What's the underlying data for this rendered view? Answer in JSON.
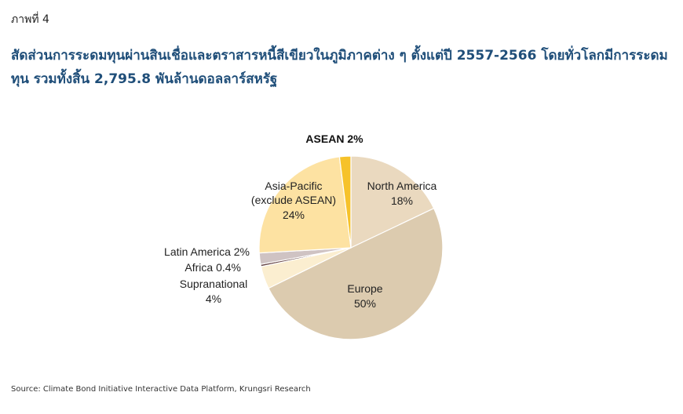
{
  "figure_label": "ภาพที่ 4",
  "title": "สัดส่วนการระดมทุนผ่านสินเชื่อและตราสารหนี้สีเขียวในภูมิภาคต่าง ๆ ตั้งแต่ปี 2557-2566 โดยทั่วโลกมีการระดมทุน รวมทั้งสิ้น 2,795.8 พันล้านดอลลาร์สหรัฐ",
  "source": "Source: Climate Bond Initiative Interactive Data Platform, Krungsri Research",
  "chart_data": {
    "type": "pie",
    "unit": "%",
    "slices": [
      {
        "name": "North America",
        "value": 18,
        "value_label": "18%",
        "color": "#ead9bf"
      },
      {
        "name": "Europe",
        "value": 50,
        "value_label": "50%",
        "color": "#dccbaf"
      },
      {
        "name": "Supranational",
        "value": 4,
        "value_label": "4%",
        "color": "#fbeed0"
      },
      {
        "name": "Africa",
        "value": 0.4,
        "value_label": "0.4%",
        "color": "#6b4a4a"
      },
      {
        "name": "Latin America",
        "value": 2,
        "value_label": "2%",
        "color": "#cfc3c3"
      },
      {
        "name": "Asia-Pacific (exclude ASEAN)",
        "value": 24,
        "value_label": "24%",
        "color": "#fde2a2"
      },
      {
        "name": "ASEAN",
        "value": 2,
        "value_label": "2%",
        "color": "#f6c22a"
      }
    ],
    "labels": {
      "asean": "ASEAN 2%",
      "north_america_1": "North America",
      "north_america_2": "18%",
      "asia_pacific_1": "Asia-Pacific",
      "asia_pacific_2": "(exclude ASEAN)",
      "asia_pacific_3": "24%",
      "latin_america": "Latin America 2%",
      "africa": "Africa 0.4%",
      "supranational_1": "Supranational",
      "supranational_2": "4%",
      "europe_1": "Europe",
      "europe_2": "50%"
    }
  }
}
